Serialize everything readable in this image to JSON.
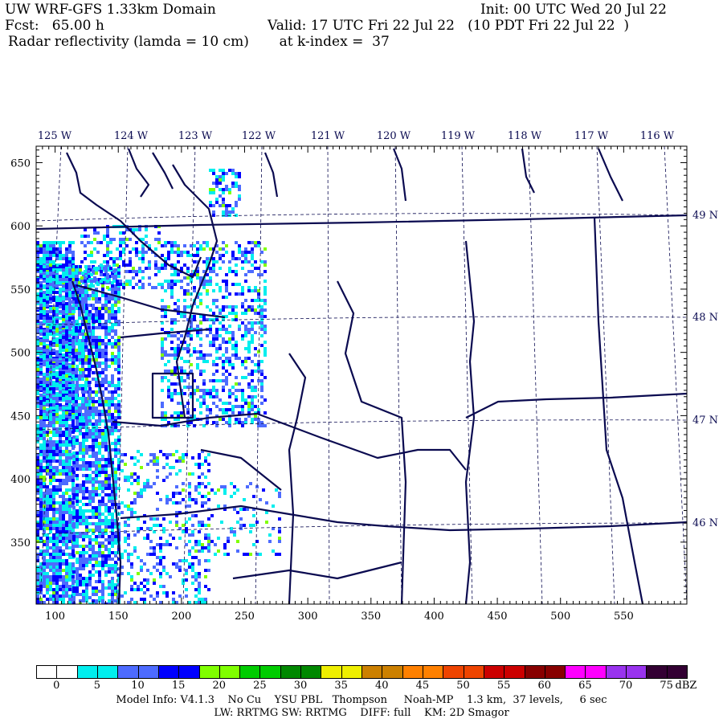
{
  "header": {
    "title": "UW WRF-GFS 1.33km Domain",
    "init": "Init: 00 UTC Wed 20 Jul 22",
    "fcst": "Fcst:   65.00 h",
    "valid": "Valid: 17 UTC Fri 22 Jul 22   (10 PDT Fri 22 Jul 22  )",
    "field": "Radar reflectivity (lamda = 10 cm)       at k-index =  37"
  },
  "map": {
    "x_grid_labels": [
      "100",
      "150",
      "200",
      "250",
      "300",
      "350",
      "400",
      "450",
      "500",
      "550"
    ],
    "y_grid_labels": [
      "650",
      "600",
      "550",
      "500",
      "450",
      "400",
      "350"
    ],
    "lon_labels": [
      "125 W",
      "124 W",
      "123 W",
      "122 W",
      "121 W",
      "120 W",
      "119 W",
      "118 W",
      "117 W",
      "116 W"
    ],
    "lat_labels": [
      "49 N",
      "48 N",
      "47 N",
      "46 N"
    ],
    "x_range": [
      85,
      600
    ],
    "y_range": [
      301,
      663
    ],
    "outline_color": "#0a0a50"
  },
  "colorbar": {
    "colors": [
      "#ffffff",
      "#00eeee",
      "#4d6bff",
      "#0000ff",
      "#80ff00",
      "#00cc00",
      "#008800",
      "#eeee00",
      "#cc8000",
      "#ff8000",
      "#ee4400",
      "#cc0000",
      "#880000",
      "#ff00ff",
      "#9933ee",
      "#330033"
    ],
    "labels": [
      "0",
      "5",
      "10",
      "15",
      "20",
      "25",
      "30",
      "35",
      "40",
      "45",
      "50",
      "55",
      "60",
      "65",
      "70",
      "75"
    ],
    "unit": "dBZ"
  },
  "footer": {
    "line1": "Model Info: V4.1.3    No Cu    YSU PBL   Thompson     Noah-MP    1.3 km,  37 levels,     6 sec",
    "line2": "LW: RRTMG SW: RRTMG    DIFF: full    KM: 2D Smagor"
  }
}
